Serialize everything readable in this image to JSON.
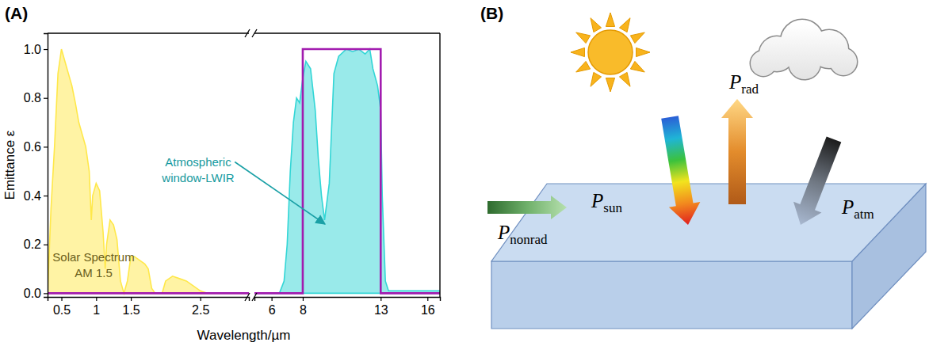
{
  "panel_labels": {
    "a": "(A)",
    "b": "(B)"
  },
  "chart_data": [
    {
      "type": "line",
      "ylabel": "Emittance ε",
      "xlabel": "Wavelength/µm",
      "xlim": [
        0.3,
        3.2
      ],
      "ylim": [
        -0.015,
        1.065
      ],
      "xticks": [
        0.5,
        1,
        1.5,
        2.5
      ],
      "yticks": [
        {
          "value": 0,
          "label": "0.0"
        },
        {
          "value": 0.2,
          "label": "0.2"
        },
        {
          "value": 0.4,
          "label": "0.4"
        },
        {
          "value": 0.6,
          "label": "0.6"
        },
        {
          "value": 0.8,
          "label": "0.8"
        },
        {
          "value": 1,
          "label": "1.0"
        }
      ],
      "annotation": [
        "Solar Spectrum",
        "AM 1.5"
      ],
      "series": [
        {
          "type": "area",
          "color": "#ffe84a",
          "x": [
            0.3,
            0.35,
            0.4,
            0.45,
            0.5,
            0.55,
            0.6,
            0.65,
            0.7,
            0.75,
            0.8,
            0.85,
            0.9,
            0.93,
            0.95,
            1.0,
            1.05,
            1.1,
            1.13,
            1.15,
            1.2,
            1.25,
            1.3,
            1.35,
            1.4,
            1.45,
            1.5,
            1.55,
            1.6,
            1.7,
            1.75,
            1.8,
            1.85,
            1.95,
            2.0,
            2.1,
            2.2,
            2.3,
            2.4,
            2.5,
            2.6,
            3.2
          ],
          "values": [
            0,
            0.35,
            0.6,
            0.9,
            1.0,
            0.95,
            0.9,
            0.85,
            0.78,
            0.7,
            0.65,
            0.6,
            0.5,
            0.3,
            0.4,
            0.45,
            0.42,
            0.25,
            0.1,
            0.2,
            0.3,
            0.28,
            0.22,
            0.05,
            0,
            0.05,
            0.15,
            0.15,
            0.14,
            0.12,
            0.1,
            0.02,
            0,
            0,
            0.05,
            0.07,
            0.06,
            0.05,
            0.03,
            0.01,
            0,
            0
          ]
        },
        {
          "type": "line",
          "color": "#a21caf",
          "x": [
            0.3,
            3.2
          ],
          "values": [
            0,
            0
          ]
        }
      ]
    },
    {
      "type": "line",
      "xlim": [
        4.9,
        16.8
      ],
      "ylim": [
        -0.015,
        1.065
      ],
      "xticks": [
        6,
        8,
        13,
        16
      ],
      "annotation": [
        "Atmospheric",
        "window-LWIR"
      ],
      "series": [
        {
          "type": "area",
          "color": "#33d6d6",
          "x": [
            4.9,
            6.5,
            6.8,
            7.0,
            7.2,
            7.4,
            7.6,
            7.8,
            8.0,
            8.2,
            8.5,
            8.8,
            9.0,
            9.2,
            9.4,
            9.7,
            10.0,
            10.3,
            10.8,
            11.2,
            11.6,
            12.0,
            12.3,
            12.5,
            12.8,
            13.0,
            13.1,
            13.3,
            13.5,
            16.8
          ],
          "values": [
            0,
            0,
            0.05,
            0.2,
            0.5,
            0.7,
            0.8,
            0.78,
            0.88,
            0.95,
            0.92,
            0.75,
            0.55,
            0.4,
            0.3,
            0.45,
            0.9,
            0.97,
            1.0,
            0.99,
            1.0,
            0.98,
            1.0,
            0.92,
            0.85,
            0.75,
            0.4,
            0.05,
            0.01,
            0.01
          ]
        },
        {
          "type": "line",
          "color": "#a21caf",
          "x": [
            4.9,
            8,
            8,
            13,
            13,
            16.8
          ],
          "values": [
            0,
            0,
            1,
            1,
            0,
            0
          ]
        }
      ]
    }
  ],
  "diagram": {
    "labels": [
      {
        "main": "P",
        "sub": "sun"
      },
      {
        "main": "P",
        "sub": "rad"
      },
      {
        "main": "P",
        "sub": "atm"
      },
      {
        "main": "P",
        "sub": "nonrad"
      }
    ]
  }
}
